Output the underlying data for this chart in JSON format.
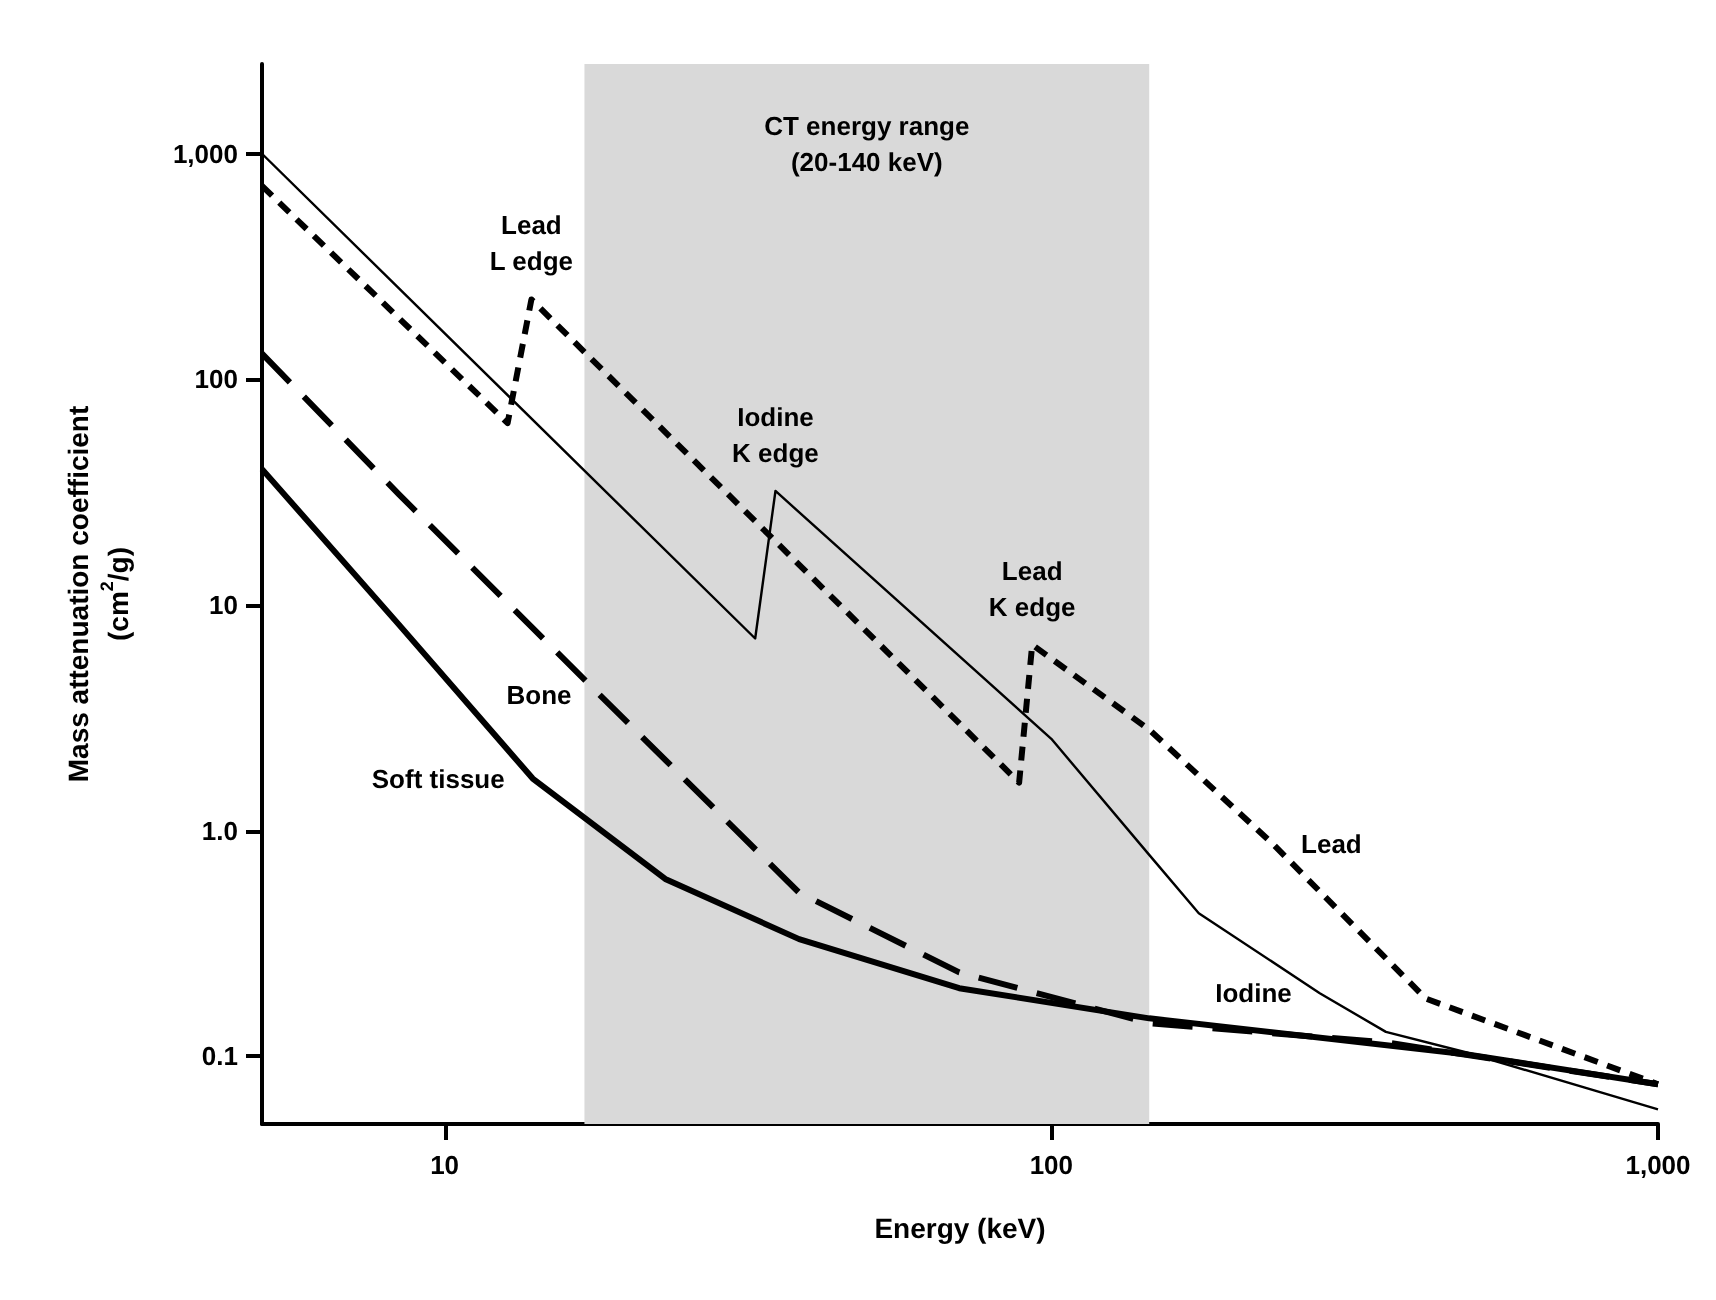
{
  "chart_data": {
    "type": "line",
    "xlabel": "Energy (keV)",
    "ylabel": "Mass attenuation coefficient\n(cm$^{2}$/g)",
    "log": "xy",
    "grid": false,
    "legend": false,
    "marker": "none",
    "xlim": [
      5,
      1000
    ],
    "xticks": [
      10,
      100,
      {
        "value": 1000,
        "label": "1,000"
      }
    ],
    "ylim": [
      0.05,
      2500
    ],
    "yticks": [
      0.1,
      {
        "value": 1,
        "label": "1.0"
      },
      10,
      100,
      {
        "value": 1000,
        "label": "1,000"
      }
    ],
    "bands": [
      {
        "axis": "x",
        "from": 17,
        "to": 145,
        "label": "CT energy range\n(20-140 keV)",
        "color": "#d9d9d9"
      }
    ],
    "annotations": [
      {
        "text": "Lead\nL edge",
        "x": 13.9,
        "y": 226
      },
      {
        "text": "Iodine\nK edge",
        "x": 35.1,
        "y": 32
      },
      {
        "text": "Lead\nK edge",
        "x": 93,
        "y": 6.66
      }
    ],
    "series": [
      {
        "name": "Iodine",
        "color": "#000000",
        "line_style": "solid",
        "x": [
          5,
          32.5,
          35.1,
          100,
          145,
          175,
          277,
          356,
          482,
          1000
        ],
        "values": [
          1000,
          7.1,
          32,
          2.55,
          0.78,
          0.43,
          0.19,
          0.128,
          0.104,
          0.058
        ]
      },
      {
        "name": "Lead",
        "color": "#000000",
        "line_style": "dashed",
        "x": [
          5,
          12.7,
          13.9,
          88.5,
          93,
          145,
          232,
          414,
          1000
        ],
        "values": [
          720,
          64,
          226,
          1.63,
          6.66,
          2.8,
          0.87,
          0.18,
          0.075
        ]
      },
      {
        "name": "Bone",
        "color": "#000000",
        "line_style": "dashed",
        "x": [
          5,
          8.4,
          18,
          38.4,
          70.5,
          145,
          356,
          1000
        ],
        "values": [
          130,
          31,
          4,
          0.53,
          0.235,
          0.14,
          0.115,
          0.075
        ]
      },
      {
        "name": "Soft tissue",
        "color": "#000000",
        "line_style": "solid",
        "x": [
          5,
          8.4,
          13.97,
          23.1,
          38.4,
          70.5,
          145,
          482,
          1000
        ],
        "values": [
          40,
          8.2,
          1.7,
          0.61,
          0.33,
          0.2,
          0.147,
          0.102,
          0.075
        ]
      }
    ]
  }
}
